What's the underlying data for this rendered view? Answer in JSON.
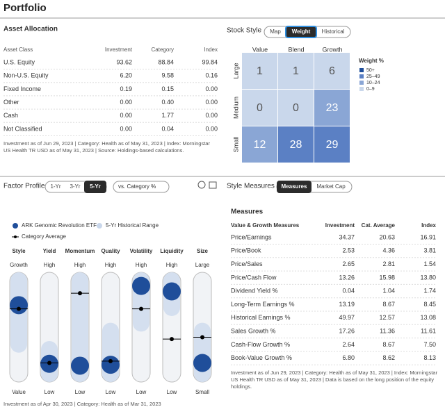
{
  "title": "Portfolio",
  "asset_allocation": {
    "title": "Asset Allocation",
    "columns": [
      "Asset Class",
      "Investment",
      "Category",
      "Index"
    ],
    "rows": [
      [
        "U.S. Equity",
        "93.62",
        "88.84",
        "99.84"
      ],
      [
        "Non-U.S. Equity",
        "6.20",
        "9.58",
        "0.16"
      ],
      [
        "Fixed Income",
        "0.19",
        "0.15",
        "0.00"
      ],
      [
        "Other",
        "0.00",
        "0.40",
        "0.00"
      ],
      [
        "Cash",
        "0.00",
        "1.77",
        "0.00"
      ],
      [
        "Not Classified",
        "0.00",
        "0.04",
        "0.00"
      ]
    ],
    "note": "Investment as of Jun 29, 2023 | Category: Health as of May 31, 2023 | Index: Morningstar US Health TR USD as of May 31, 2023 | Source: Holdings-based calculations."
  },
  "stock_style": {
    "title": "Stock Style",
    "tabs": [
      "Map",
      "Weight",
      "Historical"
    ],
    "columns": [
      "Value",
      "Blend",
      "Growth"
    ],
    "rows": [
      "Large",
      "Medium",
      "Small"
    ],
    "values": [
      [
        1,
        1,
        6
      ],
      [
        0,
        0,
        23
      ],
      [
        12,
        28,
        29
      ]
    ],
    "colors": [
      [
        "#c9d7eb",
        "#c9d7eb",
        "#c9d7eb"
      ],
      [
        "#c9d7eb",
        "#c9d7eb",
        "#8aa6d5"
      ],
      [
        "#8aa6d5",
        "#5b80c4",
        "#5b80c4"
      ]
    ],
    "legend_title": "Weight %",
    "legend": [
      {
        "label": "50+",
        "color": "#1f4e9a"
      },
      {
        "label": "25–49",
        "color": "#5b80c4"
      },
      {
        "label": "10–24",
        "color": "#8aa6d5"
      },
      {
        "label": "0–9",
        "color": "#c9d7eb"
      }
    ]
  },
  "factor_profile": {
    "title": "Factor Profile",
    "tabs": [
      "1-Yr",
      "3-Yr",
      "5-Yr"
    ],
    "dropdown": "vs. Category %",
    "legend": [
      "ARK Genomic Revolution ETF",
      "5-Yr Historical Range",
      "Category Average"
    ],
    "ylim": [
      0,
      100
    ],
    "factors": [
      {
        "name": "Style",
        "high": "Growth",
        "low": "Value",
        "fund": 74,
        "category": 70,
        "range": [
          32,
          100
        ]
      },
      {
        "name": "Yield",
        "high": "High",
        "low": "Low",
        "fund": 10,
        "category": 11,
        "range": [
          0,
          25
        ]
      },
      {
        "name": "Momentum",
        "high": "High",
        "low": "Low",
        "fund": 8,
        "category": 87,
        "range": [
          0,
          100
        ]
      },
      {
        "name": "Quality",
        "high": "High",
        "low": "Low",
        "fund": 9,
        "category": 13,
        "range": [
          0,
          45
        ]
      },
      {
        "name": "Volatility",
        "high": "High",
        "low": "Low",
        "fund": 95,
        "category": 70,
        "range": [
          55,
          100
        ]
      },
      {
        "name": "Liquidity",
        "high": "High",
        "low": "Low",
        "fund": 89,
        "category": 37,
        "range": [
          72,
          100
        ]
      },
      {
        "name": "Size",
        "high": "Large",
        "low": "Small",
        "fund": 11,
        "category": 39,
        "range": [
          0,
          45
        ]
      }
    ],
    "note": "Investment as of Apr 30, 2023 | Category: Health as of Mar 31, 2023"
  },
  "style_measures": {
    "title": "Style Measures",
    "tabs": [
      "Measures",
      "Market Cap"
    ],
    "subtitle": "Measures",
    "columns": [
      "Value & Growth Measures",
      "Investment",
      "Cat. Average",
      "Index"
    ],
    "rows": [
      [
        "Price/Earnings",
        "34.37",
        "20.63",
        "16.91"
      ],
      [
        "Price/Book",
        "2.53",
        "4.36",
        "3.81"
      ],
      [
        "Price/Sales",
        "2.65",
        "2.81",
        "1.54"
      ],
      [
        "Price/Cash Flow",
        "13.26",
        "15.98",
        "13.80"
      ],
      [
        "Dividend Yield %",
        "0.04",
        "1.04",
        "1.74"
      ],
      [
        "Long-Term Earnings %",
        "13.19",
        "8.67",
        "8.45"
      ],
      [
        "Historical Earnings %",
        "49.97",
        "12.57",
        "13.08"
      ],
      [
        "Sales Growth %",
        "17.26",
        "11.36",
        "11.61"
      ],
      [
        "Cash-Flow Growth %",
        "2.64",
        "8.67",
        "7.50"
      ],
      [
        "Book-Value Growth %",
        "6.80",
        "8.62",
        "8.13"
      ]
    ],
    "note": "Investment as of Jun 29, 2023 | Category: Health as of May 31, 2023 | Index: Morningstar US Health TR USD as of May 31, 2023 | Data is based on the long position of the equity holdings."
  }
}
